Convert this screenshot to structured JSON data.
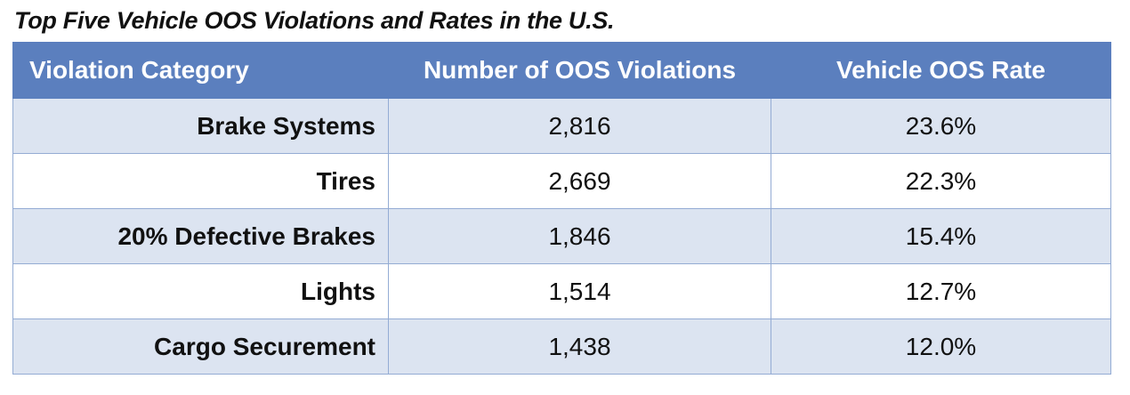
{
  "chart_data": {
    "type": "table",
    "title": "Top Five Vehicle OOS Violations and Rates in the U.S.",
    "columns": [
      "Violation Category",
      "Number of OOS Violations",
      "Vehicle OOS Rate"
    ],
    "rows": [
      {
        "category": "Brake Systems",
        "violations": "2,816",
        "rate": "23.6%"
      },
      {
        "category": "Tires",
        "violations": "2,669",
        "rate": "22.3%"
      },
      {
        "category": "20% Defective Brakes",
        "violations": "1,846",
        "rate": "15.4%"
      },
      {
        "category": "Lights",
        "violations": "1,514",
        "rate": "12.7%"
      },
      {
        "category": "Cargo Securement",
        "violations": "1,438",
        "rate": "12.0%"
      }
    ],
    "header_color": "#5b7fbe",
    "shaded_row_color": "#dce4f1",
    "border_color": "#94acd4"
  }
}
